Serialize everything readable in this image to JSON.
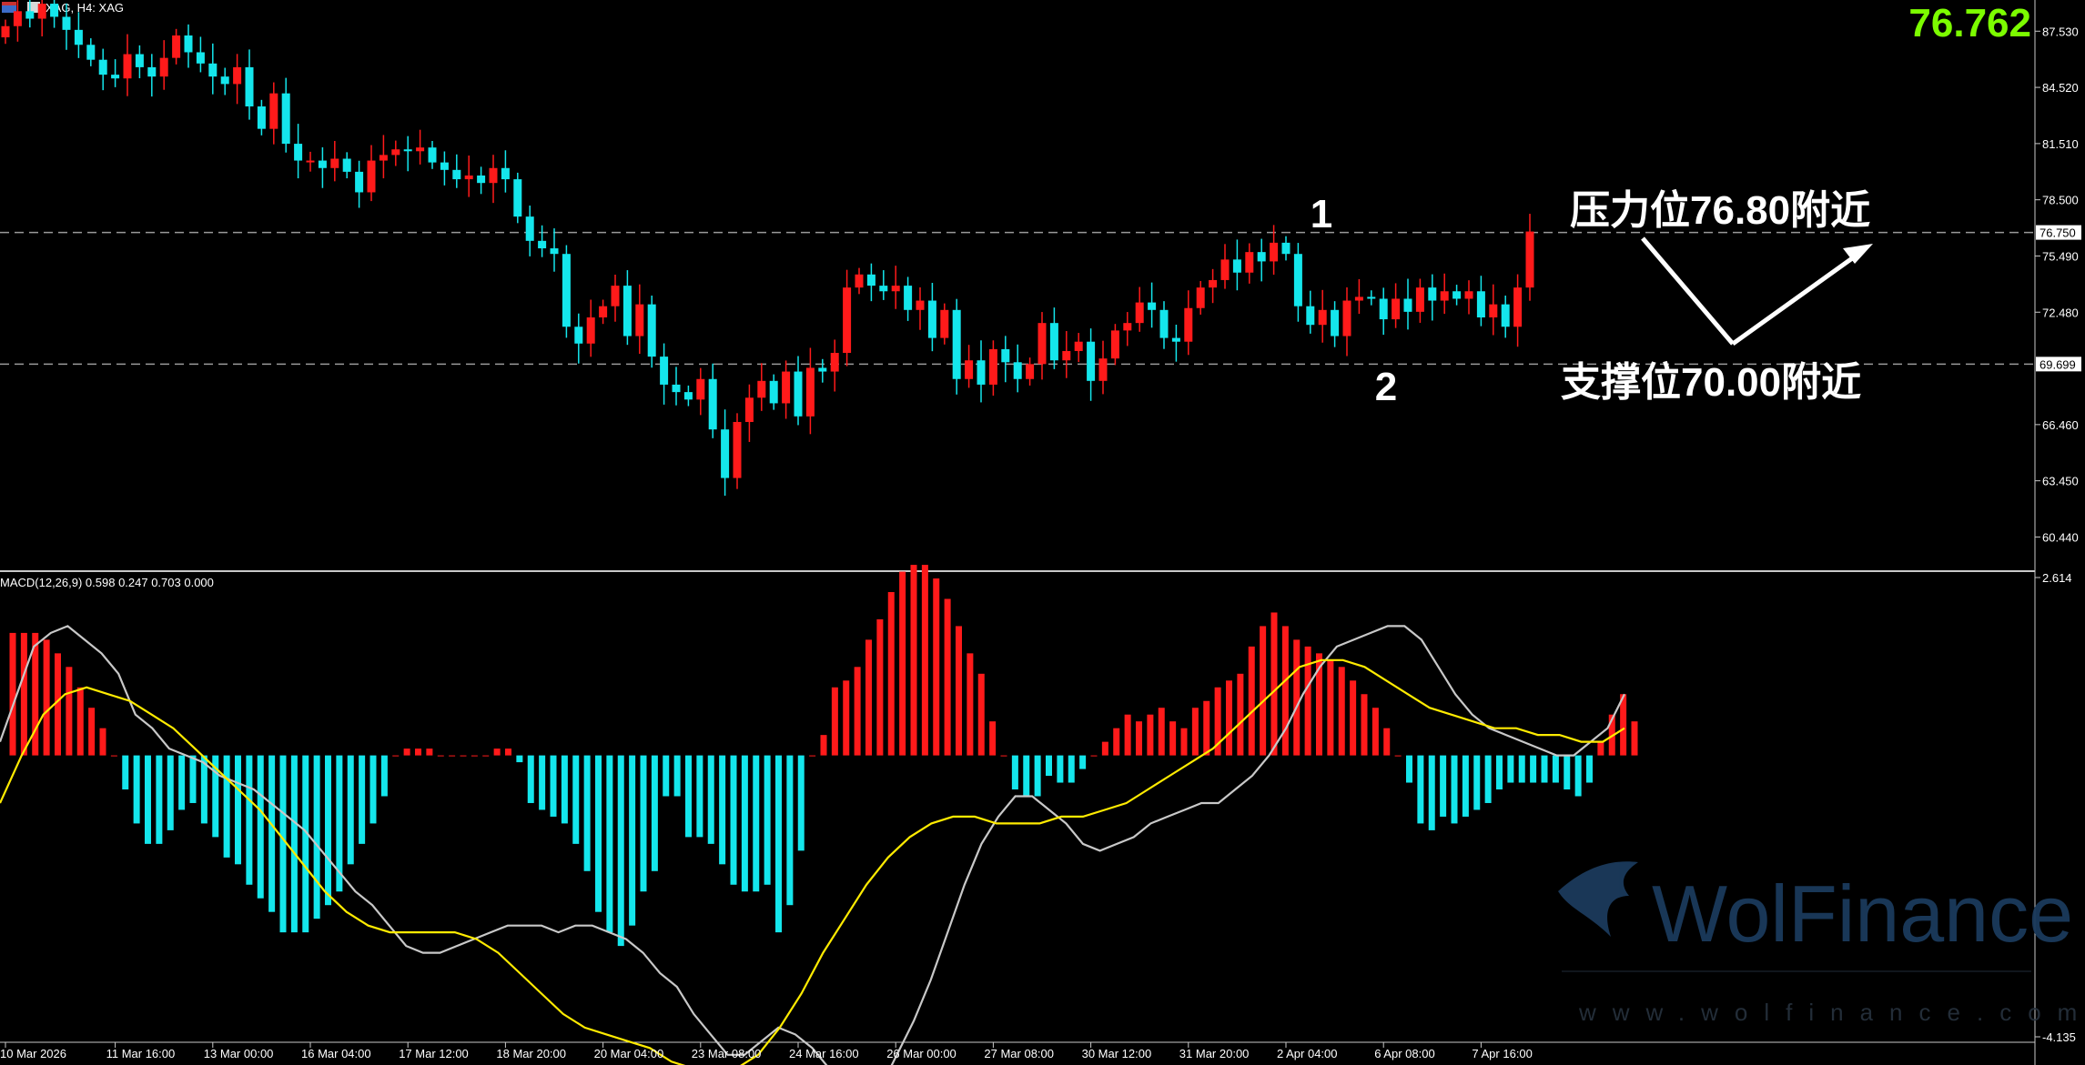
{
  "header": {
    "title": "XAG, H4: XAG",
    "current_price": "76.762"
  },
  "annotations": {
    "resistance": "压力位76.80附近",
    "support": "支撑位70.00附近",
    "marker_1": "1",
    "marker_2": "2"
  },
  "watermark": {
    "brand": "WolFinance",
    "url": "www.wolfinance.com"
  },
  "colors": {
    "bull": "#ff1a1a",
    "bear": "#14e6ec",
    "macd_line": "#c8c8c8",
    "signal_line": "#ffeb00",
    "price_text": "#7cfc00",
    "level_line": "#9a9a9a"
  },
  "chart_data": [
    {
      "type": "candlestick",
      "title": "XAG, H4: XAG",
      "symbol": "XAG",
      "timeframe": "H4",
      "ylim": [
        59.0,
        89.2
      ],
      "y_ticks": [
        "87.530",
        "84.520",
        "81.510",
        "78.500",
        "75.490",
        "72.480",
        "69.699",
        "66.460",
        "63.450",
        "60.440"
      ],
      "y_tick_values": [
        87.53,
        84.52,
        81.51,
        78.5,
        75.49,
        72.48,
        69.699,
        66.46,
        63.45,
        60.44
      ],
      "current_price_tag": "76.750",
      "levels": [
        {
          "name": "resistance",
          "value": 76.75,
          "tag": "76.750"
        },
        {
          "name": "support",
          "value": 69.699,
          "tag": "69.699"
        }
      ],
      "x_labels": [
        "10 Mar 2026",
        "11 Mar 16:00",
        "13 Mar 00:00",
        "16 Mar 04:00",
        "17 Mar 12:00",
        "18 Mar 20:00",
        "20 Mar 04:00",
        "23 Mar 08:00",
        "24 Mar 16:00",
        "26 Mar 00:00",
        "27 Mar 08:00",
        "30 Mar 12:00",
        "31 Mar 20:00",
        "2 Apr 04:00",
        "6 Apr 08:00",
        "7 Apr 16:00"
      ],
      "x_label_bar_index": [
        0,
        9,
        17,
        25,
        33,
        41,
        49,
        57,
        65,
        73,
        81,
        89,
        97,
        105,
        113,
        121
      ],
      "closes": [
        87.8,
        88.6,
        88.2,
        89.0,
        88.3,
        87.6,
        86.8,
        86.0,
        85.2,
        85.0,
        86.3,
        85.6,
        85.1,
        86.1,
        87.3,
        86.4,
        85.8,
        85.1,
        84.7,
        85.6,
        83.5,
        82.3,
        84.2,
        81.5,
        80.6,
        80.6,
        80.2,
        80.7,
        80.0,
        78.9,
        80.6,
        80.9,
        81.2,
        81.1,
        81.3,
        80.5,
        80.1,
        79.6,
        79.8,
        79.4,
        80.2,
        79.6,
        77.6,
        76.3,
        75.9,
        75.6,
        71.7,
        70.8,
        72.2,
        72.8,
        73.9,
        71.2,
        72.9,
        70.1,
        68.6,
        68.2,
        67.8,
        68.9,
        66.2,
        63.6,
        66.6,
        67.9,
        68.8,
        67.6,
        69.3,
        66.9,
        69.5,
        69.3,
        70.3,
        73.8,
        74.5,
        73.9,
        73.6,
        73.9,
        72.6,
        73.1,
        71.1,
        72.6,
        68.9,
        69.9,
        68.6,
        70.5,
        69.8,
        68.9,
        69.7,
        71.9,
        69.9,
        70.4,
        70.9,
        68.8,
        70.0,
        71.5,
        71.9,
        73.0,
        72.6,
        71.1,
        70.9,
        72.7,
        73.8,
        74.2,
        75.3,
        74.6,
        75.7,
        75.2,
        76.2,
        75.6,
        72.8,
        71.8,
        72.6,
        71.2,
        73.1,
        73.3,
        73.2,
        72.1,
        73.2,
        72.5,
        73.8,
        73.1,
        73.6,
        73.2,
        73.6,
        72.2,
        72.9,
        71.7,
        73.8,
        76.8
      ],
      "series": [
        {
          "name": "MACD(12,26,9)",
          "values": []
        }
      ]
    },
    {
      "type": "bar+line",
      "title": "MACD(12,26,9) 0.598 0.247 0.703 0.000",
      "ylim": [
        -4.135,
        2.614
      ],
      "y_ticks": [
        "2.614",
        "-4.135"
      ],
      "histogram": [
        1.8,
        1.8,
        1.8,
        1.7,
        1.5,
        1.3,
        1.0,
        0.7,
        0.4,
        0.0,
        -0.5,
        -1.0,
        -1.3,
        -1.3,
        -1.1,
        -0.8,
        -0.7,
        -1.0,
        -1.2,
        -1.5,
        -1.6,
        -1.9,
        -2.1,
        -2.3,
        -2.6,
        -2.6,
        -2.6,
        -2.4,
        -2.2,
        -2.0,
        -1.6,
        -1.3,
        -1.0,
        -0.6,
        0.0,
        0.1,
        0.1,
        0.1,
        0.0,
        0.0,
        0.0,
        0.0,
        0.0,
        0.1,
        0.1,
        -0.1,
        -0.7,
        -0.8,
        -0.9,
        -1.0,
        -1.3,
        -1.7,
        -2.3,
        -2.6,
        -2.8,
        -2.5,
        -2.0,
        -1.7,
        -0.6,
        -0.6,
        -1.2,
        -1.2,
        -1.3,
        -1.6,
        -1.9,
        -2.0,
        -2.0,
        -1.9,
        -2.6,
        -2.2,
        -1.4,
        0.0,
        0.3,
        1.0,
        1.1,
        1.3,
        1.7,
        2.0,
        2.4,
        2.7,
        2.8,
        2.8,
        2.6,
        2.3,
        1.9,
        1.5,
        1.2,
        0.5,
        0.0,
        -0.5,
        -0.6,
        -0.6,
        -0.3,
        -0.4,
        -0.4,
        -0.2,
        0.0,
        0.2,
        0.4,
        0.6,
        0.5,
        0.6,
        0.7,
        0.5,
        0.4,
        0.7,
        0.8,
        1.0,
        1.1,
        1.2,
        1.6,
        1.9,
        2.1,
        1.9,
        1.7,
        1.6,
        1.5,
        1.4,
        1.3,
        1.1,
        0.9,
        0.7,
        0.4,
        0.0,
        -0.4,
        -1.0,
        -1.1,
        -0.9,
        -1.0,
        -0.9,
        -0.8,
        -0.7,
        -0.5,
        -0.4,
        -0.4,
        -0.4,
        -0.4,
        -0.4,
        -0.5,
        -0.6,
        -0.4,
        0.2,
        0.6,
        0.9,
        0.5
      ],
      "macd_line": [
        0.2,
        0.9,
        1.6,
        1.8,
        1.9,
        1.7,
        1.5,
        1.2,
        0.6,
        0.4,
        0.1,
        0.0,
        -0.1,
        -0.3,
        -0.4,
        -0.5,
        -0.7,
        -0.9,
        -1.1,
        -1.4,
        -1.7,
        -2.0,
        -2.2,
        -2.5,
        -2.8,
        -2.9,
        -2.9,
        -2.8,
        -2.7,
        -2.6,
        -2.5,
        -2.5,
        -2.5,
        -2.6,
        -2.5,
        -2.5,
        -2.6,
        -2.7,
        -2.9,
        -3.2,
        -3.4,
        -3.8,
        -4.1,
        -4.4,
        -4.4,
        -4.2,
        -4.0,
        -4.1,
        -4.3,
        -4.6,
        -4.9,
        -5.2,
        -4.9,
        -4.4,
        -3.9,
        -3.3,
        -2.6,
        -1.9,
        -1.3,
        -0.9,
        -0.6,
        -0.6,
        -0.8,
        -1.0,
        -1.3,
        -1.4,
        -1.3,
        -1.2,
        -1.0,
        -0.9,
        -0.8,
        -0.7,
        -0.7,
        -0.5,
        -0.3,
        0.0,
        0.4,
        0.9,
        1.3,
        1.6,
        1.7,
        1.8,
        1.9,
        1.9,
        1.7,
        1.3,
        0.9,
        0.6,
        0.4,
        0.3,
        0.2,
        0.1,
        0.0,
        0.0,
        0.2,
        0.4,
        0.9
      ],
      "signal_line": [
        -0.7,
        0.0,
        0.6,
        0.9,
        1.0,
        0.9,
        0.8,
        0.6,
        0.4,
        0.1,
        -0.2,
        -0.5,
        -0.8,
        -1.2,
        -1.6,
        -2.0,
        -2.3,
        -2.5,
        -2.6,
        -2.6,
        -2.6,
        -2.6,
        -2.7,
        -2.9,
        -3.2,
        -3.5,
        -3.8,
        -4.0,
        -4.1,
        -4.2,
        -4.3,
        -4.5,
        -4.6,
        -4.7,
        -4.6,
        -4.4,
        -4.0,
        -3.5,
        -2.9,
        -2.4,
        -1.9,
        -1.5,
        -1.2,
        -1.0,
        -0.9,
        -0.9,
        -1.0,
        -1.0,
        -1.0,
        -0.9,
        -0.9,
        -0.8,
        -0.7,
        -0.5,
        -0.3,
        -0.1,
        0.1,
        0.4,
        0.7,
        1.0,
        1.3,
        1.4,
        1.4,
        1.3,
        1.1,
        0.9,
        0.7,
        0.6,
        0.5,
        0.4,
        0.4,
        0.3,
        0.3,
        0.2,
        0.2,
        0.4
      ]
    }
  ]
}
